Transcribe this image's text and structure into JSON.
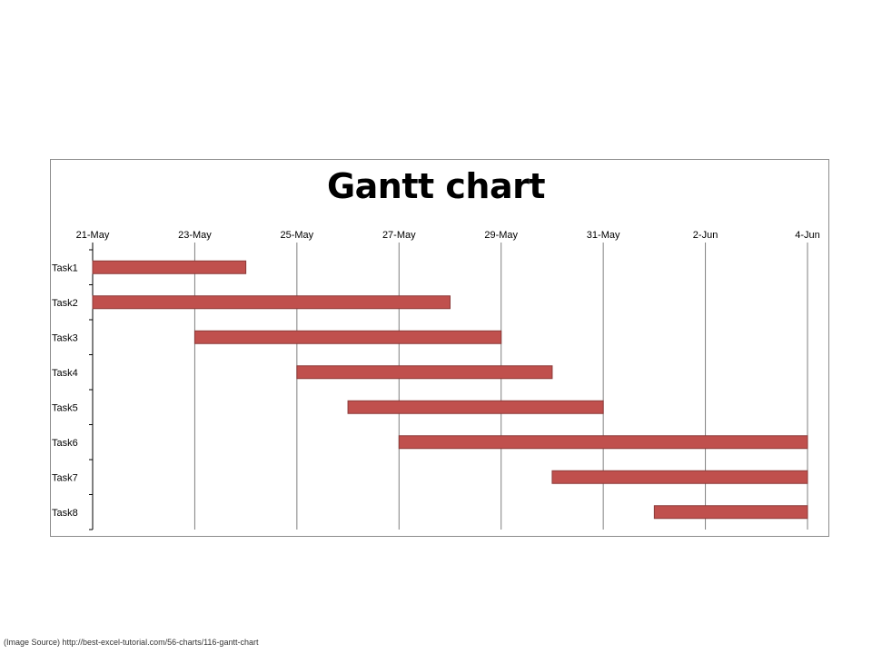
{
  "chart_data": {
    "type": "gantt",
    "title": "Gantt chart",
    "x_axis_position": "top",
    "x_ticks": [
      "21-May",
      "23-May",
      "25-May",
      "27-May",
      "29-May",
      "31-May",
      "2-Jun",
      "4-Jun"
    ],
    "xlim": [
      "21-May",
      "4-Jun"
    ],
    "grid": true,
    "tasks": [
      {
        "name": "Task1",
        "start": "21-May",
        "end": "24-May"
      },
      {
        "name": "Task2",
        "start": "21-May",
        "end": "28-May"
      },
      {
        "name": "Task3",
        "start": "23-May",
        "end": "29-May"
      },
      {
        "name": "Task4",
        "start": "25-May",
        "end": "30-May"
      },
      {
        "name": "Task5",
        "start": "26-May",
        "end": "31-May"
      },
      {
        "name": "Task6",
        "start": "27-May",
        "end": "4-Jun"
      },
      {
        "name": "Task7",
        "start": "30-May",
        "end": "4-Jun"
      },
      {
        "name": "Task8",
        "start": "1-Jun",
        "end": "4-Jun"
      }
    ],
    "bar_color": "#c0504d",
    "bar_border_color": "#8b3a38",
    "grid_color": "#7f7f7f"
  },
  "source_note": "(Image Source) http://best-excel-tutorial.com/56-charts/116-gantt-chart"
}
